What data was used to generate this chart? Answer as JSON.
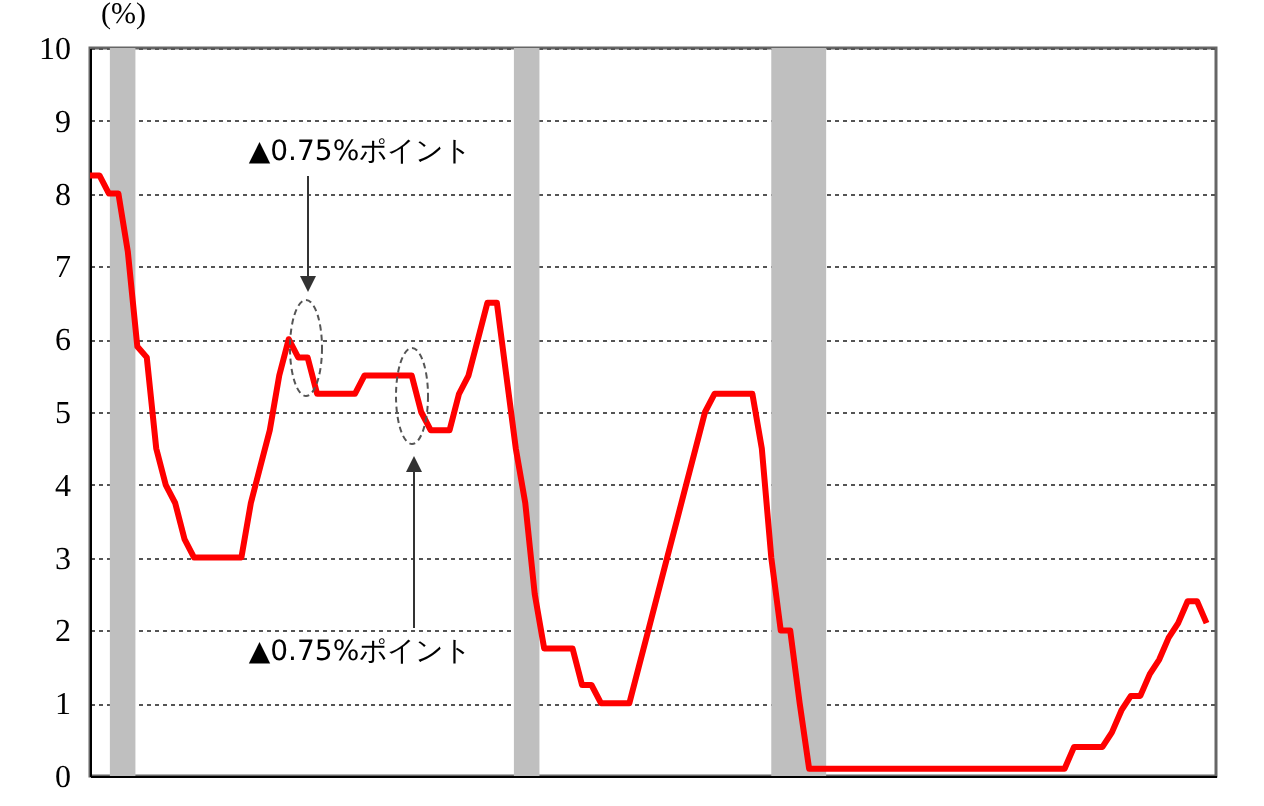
{
  "chart_data": {
    "type": "line",
    "ylabel": "(%)",
    "categories": [
      null,
      null,
      null,
      null,
      null,
      null,
      null,
      null,
      null,
      null,
      null,
      null,
      null,
      null,
      null,
      null,
      null,
      null,
      null,
      null,
      null,
      null,
      null,
      null,
      null,
      null,
      null,
      null,
      null,
      null,
      null,
      null,
      null,
      null,
      null,
      null,
      null,
      null,
      null,
      null,
      null,
      null,
      null,
      null,
      null,
      null,
      null,
      null,
      null,
      null,
      null,
      null,
      null,
      null,
      null,
      null,
      null,
      null,
      null,
      null,
      null,
      null,
      null,
      null,
      null,
      null,
      null,
      null,
      null,
      null,
      null,
      null,
      null,
      null,
      null,
      null,
      null,
      null,
      null,
      null,
      null,
      null,
      null,
      null,
      null,
      null,
      null,
      null,
      null,
      null,
      null,
      null,
      null,
      null,
      null,
      null,
      null,
      null,
      null,
      null,
      null,
      null,
      null,
      null,
      null,
      null,
      null,
      null,
      null,
      null,
      null,
      null,
      null,
      null,
      null,
      null,
      null,
      null,
      null
    ],
    "series": [
      {
        "color": "#ff0000",
        "values": [
          8.25,
          8.25,
          8.0,
          8.0,
          7.2,
          5.9,
          5.75,
          4.5,
          4.0,
          3.75,
          3.25,
          3.0,
          3.0,
          3.0,
          3.0,
          3.0,
          3.0,
          3.75,
          4.25,
          4.75,
          5.5,
          6.0,
          5.75,
          5.75,
          5.25,
          5.25,
          5.25,
          5.25,
          5.25,
          5.5,
          5.5,
          5.5,
          5.5,
          5.5,
          5.5,
          5.0,
          4.75,
          4.75,
          4.75,
          5.25,
          5.5,
          6.0,
          6.5,
          6.5,
          5.5,
          4.5,
          3.75,
          2.5,
          1.75,
          1.75,
          1.75,
          1.75,
          1.25,
          1.25,
          1.0,
          1.0,
          1.0,
          1.0,
          1.5,
          2.0,
          2.5,
          3.0,
          3.5,
          4.0,
          4.5,
          5.0,
          5.25,
          5.25,
          5.25,
          5.25,
          5.25,
          4.5,
          3.0,
          2.0,
          2.0,
          1.0,
          0.1,
          0.1,
          0.1,
          0.1,
          0.1,
          0.1,
          0.1,
          0.1,
          0.1,
          0.1,
          0.1,
          0.1,
          0.1,
          0.1,
          0.1,
          0.1,
          0.1,
          0.1,
          0.1,
          0.1,
          0.1,
          0.1,
          0.1,
          0.1,
          0.1,
          0.1,
          0.1,
          0.1,
          0.4,
          0.4,
          0.4,
          0.4,
          0.6,
          0.9,
          1.1,
          1.1,
          1.4,
          1.6,
          1.9,
          2.1,
          2.4,
          2.4,
          2.1
        ]
      }
    ],
    "ylim": [
      0,
      10
    ],
    "yticks": [
      0,
      1,
      2,
      3,
      4,
      5,
      6,
      7,
      8,
      9,
      10
    ],
    "tick_labels": "y",
    "grid": "y",
    "line_style": "solid",
    "annotations": [
      "▲0.75%ポイント",
      "▲0.75%ポイント"
    ]
  }
}
